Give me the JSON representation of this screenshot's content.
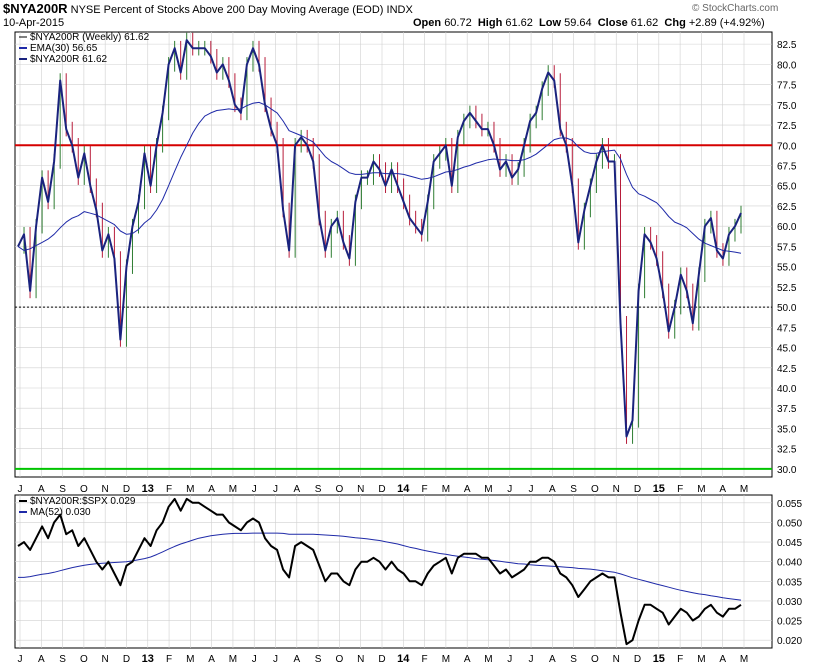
{
  "header": {
    "symbol": "$NYA200R",
    "description": "NYSE Percent of Stocks Above 200 Day Moving Average (EOD)",
    "exchange": "INDX",
    "date": "10-Apr-2015",
    "open_label": "Open",
    "open": "60.72",
    "high_label": "High",
    "high": "61.62",
    "low_label": "Low",
    "low": "59.64",
    "close_label": "Close",
    "close": "61.62",
    "chg_label": "Chg",
    "chg": "+2.89 (+4.92%)",
    "watermark": "© StockCharts.com"
  },
  "colors": {
    "price": "#1a237e",
    "ema": "#1f2aa8",
    "up_bar": "#2e7d32",
    "down_bar": "#b71c3a",
    "ref70": "#d50000",
    "ref30": "#00c400",
    "ratio": "#000000",
    "ma52": "#1f2aa8",
    "grid": "#d0d0d0"
  },
  "chart_data": [
    {
      "type": "line",
      "panel": "main",
      "legend": [
        "$NYA200R (Weekly) 61.62",
        "EMA(30) 56.65",
        "$NYA200R 61.62"
      ],
      "ylim": [
        29,
        84
      ],
      "y_ticks": [
        "82.5",
        "80.0",
        "77.5",
        "75.0",
        "72.5",
        "70.0",
        "67.5",
        "65.0",
        "62.5",
        "60.0",
        "57.5",
        "55.0",
        "52.5",
        "50.0",
        "47.5",
        "45.0",
        "42.5",
        "40.0",
        "37.5",
        "35.0",
        "32.5",
        "30.0"
      ],
      "x_labels": [
        "J",
        "A",
        "S",
        "O",
        "N",
        "D",
        "13",
        "F",
        "M",
        "A",
        "M",
        "J",
        "J",
        "A",
        "S",
        "O",
        "N",
        "D",
        "14",
        "F",
        "M",
        "A",
        "M",
        "J",
        "J",
        "A",
        "S",
        "O",
        "N",
        "D",
        "15",
        "F",
        "M",
        "A",
        "M"
      ],
      "reference_lines": [
        70,
        50,
        30
      ],
      "series": [
        {
          "name": "$NYA200R",
          "values": [
            57.5,
            59,
            52,
            60,
            66,
            63,
            68,
            78,
            72,
            70,
            66,
            69,
            65,
            62,
            57,
            59,
            56,
            46,
            55,
            60,
            63,
            69,
            65,
            70,
            74,
            80,
            82,
            79,
            83,
            82,
            82,
            82,
            81,
            79,
            80,
            78,
            75,
            74,
            80,
            82,
            80,
            75,
            72,
            70,
            62,
            57,
            70,
            71,
            70,
            68,
            61,
            57,
            60,
            61,
            58,
            56,
            63,
            66,
            66,
            68,
            67,
            65,
            67,
            65,
            63,
            61,
            60,
            59,
            63,
            68,
            69,
            70,
            65,
            71,
            73,
            74,
            73,
            72,
            72,
            70,
            67,
            68,
            66,
            67,
            70,
            73,
            74,
            77,
            79,
            78,
            72,
            70,
            65,
            58,
            62,
            65,
            68,
            70,
            68,
            68,
            48,
            34,
            36,
            52,
            59,
            58,
            56,
            52,
            47,
            50,
            54,
            52,
            48,
            54,
            60,
            61,
            57,
            56,
            59,
            60,
            61.62
          ]
        },
        {
          "name": "EMA(30)",
          "values": [
            57.5,
            57,
            57.2,
            57.6,
            58,
            58.4,
            59,
            59.8,
            60.5,
            61,
            61.3,
            61.8,
            61.6,
            61.4,
            61,
            60.6,
            60.2,
            59.4,
            59,
            59.1,
            59.6,
            60.4,
            61,
            62,
            63.3,
            65,
            66.8,
            68.5,
            70,
            71.5,
            72.7,
            73.6,
            74,
            74.3,
            74.4,
            74.5,
            74.4,
            74.5,
            74.9,
            75.2,
            75.3,
            75,
            74.5,
            74,
            73,
            71.8,
            71.5,
            71.2,
            70.8,
            70.4,
            69.5,
            68.6,
            68,
            67.6,
            67.1,
            66.6,
            66.4,
            66.4,
            66.5,
            66.6,
            66.6,
            66.5,
            66.5,
            66.5,
            66.4,
            66.2,
            66,
            65.8,
            65.9,
            66.1,
            66.4,
            66.7,
            66.8,
            67,
            67.3,
            67.5,
            67.8,
            68,
            68.2,
            68.3,
            68.2,
            68.2,
            68.1,
            68.1,
            68.2,
            68.5,
            68.9,
            69.5,
            70.1,
            70.7,
            70.9,
            70.9,
            70.6,
            69.8,
            69.2,
            69,
            69,
            69.2,
            69.3,
            69.4,
            68.3,
            66.4,
            64.8,
            64,
            63.7,
            63.3,
            62.9,
            62.1,
            61.2,
            60.5,
            60.2,
            59.8,
            59.1,
            58.4,
            57.9,
            57.6,
            57.3,
            57,
            56.9,
            56.8,
            56.65
          ]
        }
      ]
    },
    {
      "type": "line",
      "panel": "ratio",
      "legend": [
        "$NYA200R:$SPX 0.029",
        "MA(52) 0.030"
      ],
      "ylim": [
        0.018,
        0.057
      ],
      "y_ticks": [
        "0.055",
        "0.050",
        "0.045",
        "0.040",
        "0.035",
        "0.030",
        "0.025",
        "0.020"
      ],
      "x_labels": [
        "J",
        "A",
        "S",
        "O",
        "N",
        "D",
        "13",
        "F",
        "M",
        "A",
        "M",
        "J",
        "J",
        "A",
        "S",
        "O",
        "N",
        "D",
        "14",
        "F",
        "M",
        "A",
        "M",
        "J",
        "J",
        "A",
        "S",
        "O",
        "N",
        "D",
        "15",
        "F",
        "M",
        "A",
        "M"
      ],
      "series": [
        {
          "name": "$NYA200R:$SPX",
          "values": [
            0.044,
            0.045,
            0.043,
            0.046,
            0.049,
            0.046,
            0.05,
            0.052,
            0.047,
            0.048,
            0.044,
            0.046,
            0.043,
            0.04,
            0.038,
            0.04,
            0.037,
            0.034,
            0.039,
            0.04,
            0.043,
            0.046,
            0.044,
            0.048,
            0.05,
            0.054,
            0.056,
            0.053,
            0.056,
            0.055,
            0.055,
            0.054,
            0.053,
            0.052,
            0.052,
            0.05,
            0.049,
            0.048,
            0.05,
            0.051,
            0.05,
            0.046,
            0.044,
            0.043,
            0.038,
            0.036,
            0.044,
            0.045,
            0.044,
            0.043,
            0.039,
            0.035,
            0.037,
            0.037,
            0.035,
            0.034,
            0.038,
            0.04,
            0.04,
            0.041,
            0.04,
            0.038,
            0.04,
            0.038,
            0.037,
            0.035,
            0.035,
            0.034,
            0.037,
            0.039,
            0.04,
            0.041,
            0.037,
            0.041,
            0.042,
            0.042,
            0.042,
            0.041,
            0.041,
            0.039,
            0.037,
            0.038,
            0.036,
            0.037,
            0.038,
            0.04,
            0.04,
            0.041,
            0.041,
            0.04,
            0.037,
            0.036,
            0.034,
            0.031,
            0.033,
            0.035,
            0.036,
            0.037,
            0.036,
            0.036,
            0.027,
            0.019,
            0.02,
            0.025,
            0.029,
            0.029,
            0.028,
            0.027,
            0.024,
            0.026,
            0.028,
            0.027,
            0.025,
            0.026,
            0.028,
            0.029,
            0.027,
            0.026,
            0.028,
            0.028,
            0.029
          ]
        },
        {
          "name": "MA(52)",
          "values": [
            0.036,
            0.036,
            0.0362,
            0.0365,
            0.0368,
            0.037,
            0.0373,
            0.0377,
            0.0381,
            0.0385,
            0.0388,
            0.0391,
            0.0393,
            0.0395,
            0.0396,
            0.0397,
            0.0398,
            0.0399,
            0.04,
            0.0402,
            0.0405,
            0.0408,
            0.0412,
            0.0418,
            0.0425,
            0.0432,
            0.0439,
            0.0445,
            0.045,
            0.0455,
            0.046,
            0.0463,
            0.0466,
            0.0468,
            0.047,
            0.0471,
            0.0472,
            0.0472,
            0.0472,
            0.0473,
            0.0473,
            0.0473,
            0.0473,
            0.0473,
            0.0472,
            0.047,
            0.047,
            0.047,
            0.047,
            0.047,
            0.0469,
            0.0468,
            0.0467,
            0.0466,
            0.0465,
            0.0463,
            0.0461,
            0.046,
            0.0458,
            0.0456,
            0.0454,
            0.0451,
            0.0448,
            0.0445,
            0.0441,
            0.0437,
            0.0434,
            0.043,
            0.0427,
            0.0424,
            0.0421,
            0.0419,
            0.0416,
            0.0414,
            0.0412,
            0.041,
            0.0408,
            0.0406,
            0.0405,
            0.0403,
            0.0401,
            0.0399,
            0.0397,
            0.0395,
            0.0394,
            0.0392,
            0.0391,
            0.039,
            0.0389,
            0.0388,
            0.0387,
            0.0386,
            0.0385,
            0.0383,
            0.0382,
            0.0381,
            0.0379,
            0.0377,
            0.0375,
            0.0373,
            0.0369,
            0.0364,
            0.0359,
            0.0355,
            0.0351,
            0.0347,
            0.0343,
            0.0339,
            0.0335,
            0.0331,
            0.0327,
            0.0324,
            0.0321,
            0.0318,
            0.0316,
            0.0313,
            0.0311,
            0.0308,
            0.0306,
            0.0304,
            0.0302
          ]
        }
      ]
    }
  ]
}
